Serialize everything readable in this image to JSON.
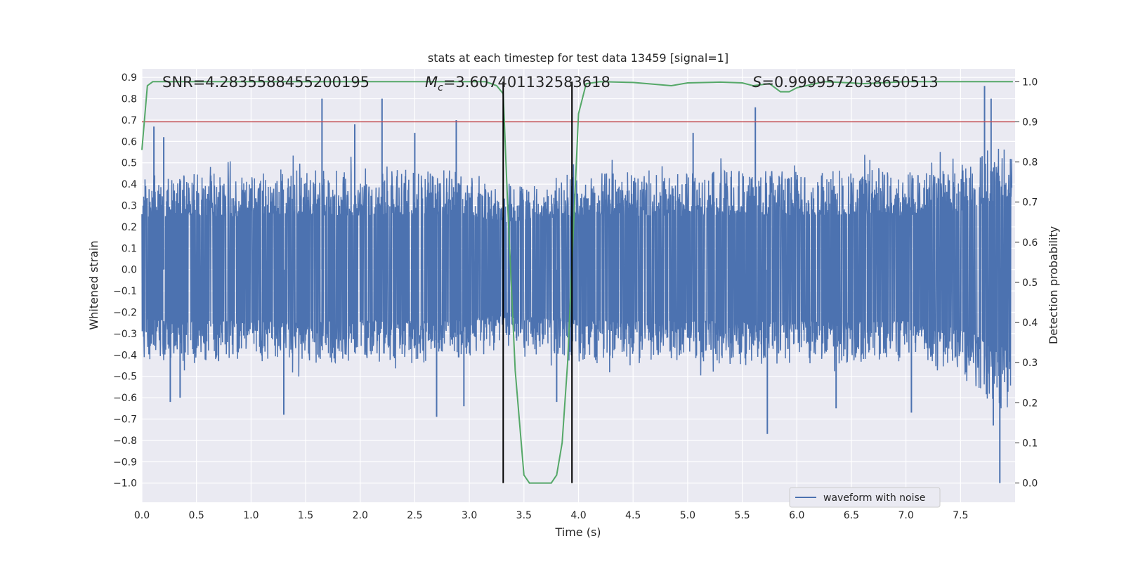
{
  "chart_data": {
    "type": "line",
    "title": "stats at each timestep for test data 13459 [signal=1]",
    "xlabel": "Time (s)",
    "ylabel": "Whitened strain",
    "y2label": "Detection probability",
    "xlim": [
      0.0,
      8.0
    ],
    "ylim": [
      -1.09,
      0.94
    ],
    "y2lim": [
      -0.048,
      1.032
    ],
    "x_ticks": [
      0.0,
      0.5,
      1.0,
      1.5,
      2.0,
      2.5,
      3.0,
      3.5,
      4.0,
      4.5,
      5.0,
      5.5,
      6.0,
      6.5,
      7.0,
      7.5
    ],
    "y_ticks": [
      -1.0,
      -0.9,
      -0.8,
      -0.7,
      -0.6,
      -0.5,
      -0.4,
      -0.3,
      -0.2,
      -0.1,
      0.0,
      0.1,
      0.2,
      0.3,
      0.4,
      0.5,
      0.6,
      0.7,
      0.8,
      0.9
    ],
    "y2_ticks": [
      0.0,
      0.1,
      0.2,
      0.3,
      0.4,
      0.5,
      0.6,
      0.7,
      0.8,
      0.9,
      1.0
    ],
    "grid": true,
    "legend_position": "lower-right",
    "annotations": {
      "snr": "SNR=4.2835588455200195",
      "mc_symbol": "M",
      "mc_sub": "c",
      "mc_value": "=3.607401132583618",
      "s_symbol": "S",
      "s_value": "=0.9999572038650513"
    },
    "threshold": {
      "value": 0.9,
      "axis": "right",
      "color": "#c44e52"
    },
    "vlines": [
      3.31,
      3.94
    ],
    "series": [
      {
        "name": "waveform with noise",
        "axis": "left",
        "color": "#4c72b0",
        "envelope_x": [
          0.0,
          0.5,
          1.0,
          1.5,
          2.0,
          2.5,
          3.0,
          3.3,
          3.5,
          3.8,
          3.95,
          4.5,
          5.0,
          5.5,
          6.0,
          6.5,
          7.0,
          7.5,
          7.85
        ],
        "envelope_upper": [
          0.45,
          0.46,
          0.45,
          0.47,
          0.46,
          0.47,
          0.46,
          0.4,
          0.42,
          0.44,
          0.45,
          0.46,
          0.45,
          0.47,
          0.46,
          0.47,
          0.46,
          0.5,
          0.6
        ],
        "envelope_lower": [
          -0.42,
          -0.44,
          -0.43,
          -0.45,
          -0.43,
          -0.44,
          -0.43,
          -0.36,
          -0.4,
          -0.42,
          -0.43,
          -0.44,
          -0.43,
          -0.45,
          -0.44,
          -0.45,
          -0.44,
          -0.5,
          -0.65
        ],
        "peaks": [
          [
            0.11,
            0.67
          ],
          [
            0.2,
            0.62
          ],
          [
            0.26,
            -0.62
          ],
          [
            0.35,
            -0.6
          ],
          [
            1.3,
            -0.68
          ],
          [
            1.65,
            0.8
          ],
          [
            1.95,
            0.68
          ],
          [
            2.2,
            0.8
          ],
          [
            2.5,
            0.64
          ],
          [
            2.7,
            -0.69
          ],
          [
            2.88,
            0.7
          ],
          [
            2.95,
            -0.64
          ],
          [
            3.8,
            -0.62
          ],
          [
            5.05,
            0.64
          ],
          [
            5.62,
            0.76
          ],
          [
            5.73,
            -0.77
          ],
          [
            6.36,
            -0.65
          ],
          [
            7.05,
            -0.67
          ],
          [
            7.72,
            0.86
          ],
          [
            7.78,
            0.8
          ],
          [
            7.8,
            -0.73
          ],
          [
            7.86,
            -1.0
          ]
        ]
      },
      {
        "name": "detection probability",
        "axis": "right",
        "color": "#55a868",
        "x": [
          0.0,
          0.05,
          0.1,
          0.15,
          3.15,
          3.25,
          3.31,
          3.35,
          3.42,
          3.5,
          3.55,
          3.65,
          3.75,
          3.8,
          3.85,
          3.9,
          3.94,
          4.0,
          4.07,
          4.2,
          4.5,
          4.85,
          5.0,
          5.3,
          5.5,
          5.6,
          5.75,
          5.85,
          5.93,
          6.0,
          6.25,
          6.5,
          6.6,
          7.0,
          7.5,
          7.98
        ],
        "y": [
          0.83,
          0.99,
          1.0,
          1.0,
          1.0,
          0.99,
          0.97,
          0.7,
          0.28,
          0.02,
          0.0,
          0.0,
          0.0,
          0.02,
          0.1,
          0.3,
          0.55,
          0.92,
          0.995,
          1.0,
          0.998,
          0.99,
          0.997,
          0.999,
          0.997,
          0.99,
          0.995,
          0.975,
          0.975,
          0.985,
          1.0,
          0.997,
          0.995,
          1.0,
          1.0,
          1.0
        ]
      }
    ]
  }
}
